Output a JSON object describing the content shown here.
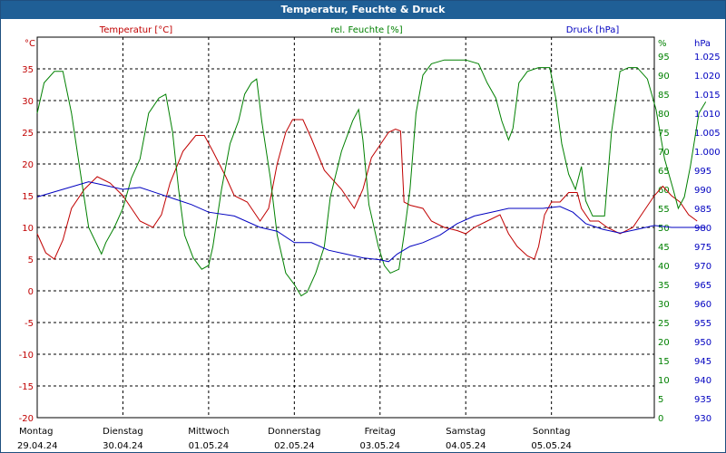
{
  "window": {
    "title": "Temperatur, Feuchte & Druck"
  },
  "colors": {
    "temperature": "#c00000",
    "humidity": "#008000",
    "pressure": "#0000c0",
    "titlebar": "#1f5f96",
    "grid": "#000000"
  },
  "chart_data": {
    "type": "line",
    "title": "Temperatur, Feuchte & Druck",
    "grid": true,
    "axes": {
      "left": {
        "unit": "°C",
        "range": [
          -20,
          40
        ],
        "ticks": [
          -20,
          -15,
          -10,
          -5,
          0,
          5,
          10,
          15,
          20,
          25,
          30,
          35
        ]
      },
      "right1": {
        "unit": "%",
        "range": [
          0,
          100
        ],
        "ticks": [
          0,
          5,
          10,
          15,
          20,
          25,
          30,
          35,
          40,
          45,
          50,
          55,
          60,
          65,
          70,
          75,
          80,
          85,
          90,
          95
        ]
      },
      "right2": {
        "unit": "hPa",
        "range": [
          930,
          1030
        ],
        "ticks": [
          "930",
          "935",
          "940",
          "945",
          "950",
          "955",
          "960",
          "965",
          "970",
          "975",
          "980",
          "985",
          "990",
          "995",
          "1.000",
          "1.005",
          "1.010",
          "1.015",
          "1.020",
          "1.025"
        ]
      }
    },
    "x_range_days": [
      0,
      7.2
    ],
    "days": [
      {
        "name": "Montag",
        "date": "29.04.24"
      },
      {
        "name": "Dienstag",
        "date": "30.04.24"
      },
      {
        "name": "Mittwoch",
        "date": "01.05.24"
      },
      {
        "name": "Donnerstag",
        "date": "02.05.24"
      },
      {
        "name": "Freitag",
        "date": "03.05.24"
      },
      {
        "name": "Samstag",
        "date": "04.05.24"
      },
      {
        "name": "Sonntag",
        "date": "05.05.24"
      }
    ],
    "series": [
      {
        "name": "Temperatur [°C]",
        "axis": "left",
        "color": "#c00000",
        "points": [
          [
            0,
            9
          ],
          [
            0.1,
            6
          ],
          [
            0.2,
            5
          ],
          [
            0.3,
            8
          ],
          [
            0.4,
            13
          ],
          [
            0.55,
            16
          ],
          [
            0.7,
            18
          ],
          [
            0.85,
            17
          ],
          [
            1.0,
            15
          ],
          [
            1.1,
            13
          ],
          [
            1.2,
            11
          ],
          [
            1.35,
            10
          ],
          [
            1.45,
            12
          ],
          [
            1.55,
            17
          ],
          [
            1.7,
            22
          ],
          [
            1.85,
            24.5
          ],
          [
            1.95,
            24.5
          ],
          [
            2.05,
            22
          ],
          [
            2.2,
            18
          ],
          [
            2.3,
            15
          ],
          [
            2.45,
            14
          ],
          [
            2.6,
            11
          ],
          [
            2.7,
            13
          ],
          [
            2.8,
            20
          ],
          [
            2.9,
            25
          ],
          [
            2.98,
            27
          ],
          [
            3.1,
            27
          ],
          [
            3.2,
            24
          ],
          [
            3.35,
            19
          ],
          [
            3.55,
            16
          ],
          [
            3.7,
            13
          ],
          [
            3.8,
            16
          ],
          [
            3.9,
            21
          ],
          [
            4.0,
            23
          ],
          [
            4.1,
            25
          ],
          [
            4.18,
            25.5
          ],
          [
            4.24,
            25.2
          ],
          [
            4.28,
            14
          ],
          [
            4.35,
            13.5
          ],
          [
            4.5,
            13
          ],
          [
            4.6,
            11
          ],
          [
            4.75,
            10
          ],
          [
            4.9,
            9.5
          ],
          [
            5.0,
            9
          ],
          [
            5.1,
            10
          ],
          [
            5.25,
            11
          ],
          [
            5.4,
            12
          ],
          [
            5.5,
            9
          ],
          [
            5.6,
            7
          ],
          [
            5.72,
            5.5
          ],
          [
            5.8,
            5
          ],
          [
            5.85,
            7
          ],
          [
            5.92,
            12
          ],
          [
            6.0,
            14
          ],
          [
            6.1,
            14
          ],
          [
            6.2,
            15.5
          ],
          [
            6.3,
            15.5
          ],
          [
            6.35,
            13
          ],
          [
            6.45,
            11
          ],
          [
            6.55,
            11
          ],
          [
            6.65,
            10
          ],
          [
            6.8,
            9
          ],
          [
            6.95,
            10
          ],
          [
            7.05,
            12
          ],
          [
            7.2,
            15
          ],
          [
            7.3,
            16.5
          ],
          [
            7.4,
            15
          ],
          [
            7.5,
            14
          ],
          [
            7.6,
            12
          ],
          [
            7.7,
            11
          ]
        ]
      },
      {
        "name": "rel. Feuchte [%]",
        "axis": "right1",
        "color": "#008000",
        "points": [
          [
            0,
            80
          ],
          [
            0.08,
            88
          ],
          [
            0.2,
            91
          ],
          [
            0.3,
            91
          ],
          [
            0.4,
            80
          ],
          [
            0.5,
            65
          ],
          [
            0.6,
            50
          ],
          [
            0.75,
            43
          ],
          [
            0.8,
            46
          ],
          [
            0.9,
            50
          ],
          [
            1.0,
            55
          ],
          [
            1.1,
            63
          ],
          [
            1.2,
            68
          ],
          [
            1.3,
            80
          ],
          [
            1.42,
            84
          ],
          [
            1.5,
            85
          ],
          [
            1.58,
            75
          ],
          [
            1.65,
            60
          ],
          [
            1.72,
            48
          ],
          [
            1.82,
            42
          ],
          [
            1.92,
            39
          ],
          [
            2.0,
            40
          ],
          [
            2.05,
            45
          ],
          [
            2.15,
            60
          ],
          [
            2.25,
            72
          ],
          [
            2.35,
            78
          ],
          [
            2.42,
            85
          ],
          [
            2.5,
            88
          ],
          [
            2.56,
            89
          ],
          [
            2.62,
            78
          ],
          [
            2.72,
            63
          ],
          [
            2.8,
            48
          ],
          [
            2.9,
            38
          ],
          [
            3.0,
            35
          ],
          [
            3.08,
            32
          ],
          [
            3.15,
            33
          ],
          [
            3.25,
            38
          ],
          [
            3.35,
            45
          ],
          [
            3.42,
            58
          ],
          [
            3.55,
            70
          ],
          [
            3.68,
            78
          ],
          [
            3.75,
            81
          ],
          [
            3.8,
            73
          ],
          [
            3.87,
            56
          ],
          [
            3.98,
            45
          ],
          [
            4.05,
            40
          ],
          [
            4.12,
            38
          ],
          [
            4.22,
            39
          ],
          [
            4.28,
            48
          ],
          [
            4.35,
            60
          ],
          [
            4.42,
            80
          ],
          [
            4.5,
            90
          ],
          [
            4.6,
            93
          ],
          [
            4.75,
            94
          ],
          [
            5.0,
            94
          ],
          [
            5.15,
            93
          ],
          [
            5.25,
            88
          ],
          [
            5.35,
            84
          ],
          [
            5.42,
            78
          ],
          [
            5.5,
            73
          ],
          [
            5.55,
            76
          ],
          [
            5.62,
            88
          ],
          [
            5.72,
            91
          ],
          [
            5.85,
            92
          ],
          [
            5.98,
            92
          ],
          [
            6.05,
            84
          ],
          [
            6.12,
            72
          ],
          [
            6.2,
            64
          ],
          [
            6.28,
            60
          ],
          [
            6.35,
            66
          ],
          [
            6.4,
            57
          ],
          [
            6.48,
            53
          ],
          [
            6.55,
            53
          ],
          [
            6.62,
            53
          ],
          [
            6.7,
            75
          ],
          [
            6.8,
            91
          ],
          [
            6.9,
            92
          ],
          [
            7.0,
            92
          ],
          [
            7.12,
            89
          ],
          [
            7.22,
            81
          ],
          [
            7.32,
            68
          ],
          [
            7.42,
            60
          ],
          [
            7.48,
            55
          ],
          [
            7.55,
            58
          ],
          [
            7.62,
            66
          ],
          [
            7.72,
            80
          ],
          [
            7.8,
            83
          ]
        ]
      },
      {
        "name": "Druck [hPa]",
        "axis": "right2",
        "color": "#0000c0",
        "points": [
          [
            0,
            988
          ],
          [
            0.3,
            990
          ],
          [
            0.6,
            992
          ],
          [
            0.8,
            991
          ],
          [
            1.0,
            990
          ],
          [
            1.2,
            990.5
          ],
          [
            1.4,
            989
          ],
          [
            1.6,
            987.5
          ],
          [
            1.8,
            986
          ],
          [
            2.0,
            984
          ],
          [
            2.3,
            983
          ],
          [
            2.6,
            980
          ],
          [
            2.8,
            979
          ],
          [
            3.0,
            976
          ],
          [
            3.2,
            976
          ],
          [
            3.4,
            974
          ],
          [
            3.6,
            973
          ],
          [
            3.8,
            972
          ],
          [
            4.0,
            971.5
          ],
          [
            4.1,
            971
          ],
          [
            4.2,
            973
          ],
          [
            4.35,
            975
          ],
          [
            4.5,
            976
          ],
          [
            4.7,
            978
          ],
          [
            4.9,
            981
          ],
          [
            5.1,
            983
          ],
          [
            5.3,
            984
          ],
          [
            5.5,
            985
          ],
          [
            5.7,
            985
          ],
          [
            5.9,
            985
          ],
          [
            6.1,
            985.5
          ],
          [
            6.25,
            984
          ],
          [
            6.4,
            981
          ],
          [
            6.6,
            979.5
          ],
          [
            6.8,
            978.5
          ],
          [
            7.0,
            979.5
          ],
          [
            7.2,
            980.5
          ],
          [
            7.4,
            980
          ],
          [
            7.6,
            980
          ],
          [
            7.8,
            980
          ]
        ]
      }
    ]
  }
}
